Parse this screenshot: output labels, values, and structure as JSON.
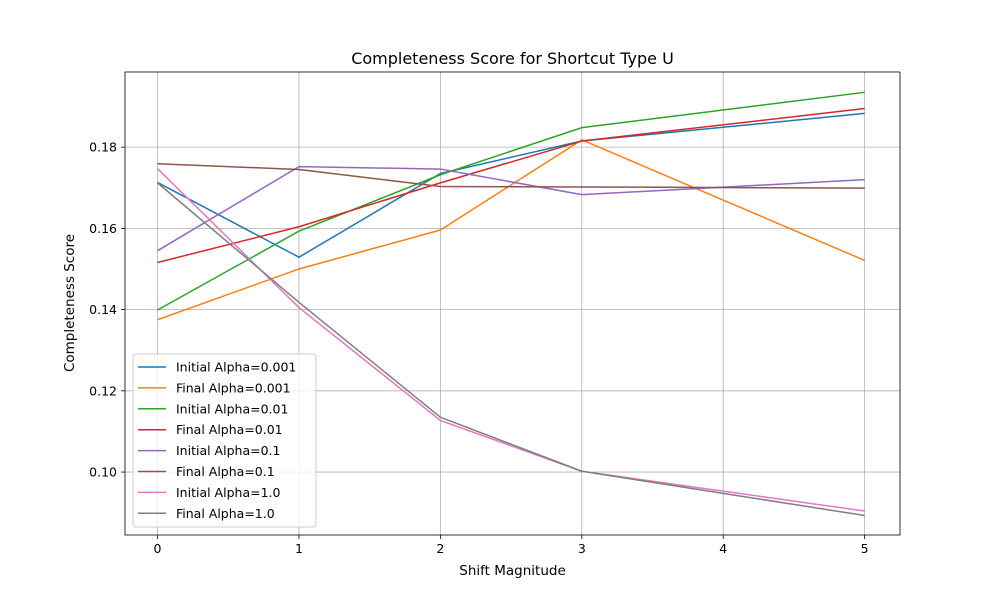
{
  "chart_data": {
    "type": "line",
    "title": "Completeness Score for Shortcut Type U",
    "xlabel": "Shift Magnitude",
    "ylabel": "Completeness Score",
    "x": [
      0,
      1,
      2,
      3,
      5
    ],
    "xticks": [
      0,
      1,
      2,
      3,
      4,
      5
    ],
    "yticks": [
      0.1,
      0.12,
      0.14,
      0.16,
      0.18
    ],
    "ytick_labels": [
      "0.10",
      "0.12",
      "0.14",
      "0.16",
      "0.18"
    ],
    "xlim": [
      -0.23,
      5.25
    ],
    "ylim": [
      0.0845,
      0.1985
    ],
    "grid": true,
    "legend_position": "lower-left",
    "series": [
      {
        "name": "Initial Alpha=0.001",
        "color": "#1f77b4",
        "values": [
          0.1713,
          0.1529,
          0.1735,
          0.1815,
          0.1883
        ]
      },
      {
        "name": "Final Alpha=0.001",
        "color": "#ff7f0e",
        "values": [
          0.1375,
          0.15,
          0.1596,
          0.1818,
          0.1521
        ]
      },
      {
        "name": "Initial Alpha=0.01",
        "color": "#2ca02c",
        "values": [
          0.1399,
          0.1593,
          0.1732,
          0.1848,
          0.1935
        ]
      },
      {
        "name": "Final Alpha=0.01",
        "color": "#d62728",
        "values": [
          0.1516,
          0.1604,
          0.1712,
          0.1815,
          0.1895
        ]
      },
      {
        "name": "Initial Alpha=0.1",
        "color": "#9467bd",
        "values": [
          0.1545,
          0.1752,
          0.1746,
          0.1683,
          0.172
        ]
      },
      {
        "name": "Final Alpha=0.1",
        "color": "#8c564b",
        "values": [
          0.1759,
          0.1745,
          0.1703,
          0.1702,
          0.1699
        ]
      },
      {
        "name": "Initial Alpha=1.0",
        "color": "#e377c2",
        "values": [
          0.1747,
          0.1405,
          0.1127,
          0.1002,
          0.0904
        ]
      },
      {
        "name": "Final Alpha=1.0",
        "color": "#7f7f7f",
        "values": [
          0.1712,
          0.1418,
          0.1135,
          0.1002,
          0.0893
        ]
      }
    ]
  }
}
